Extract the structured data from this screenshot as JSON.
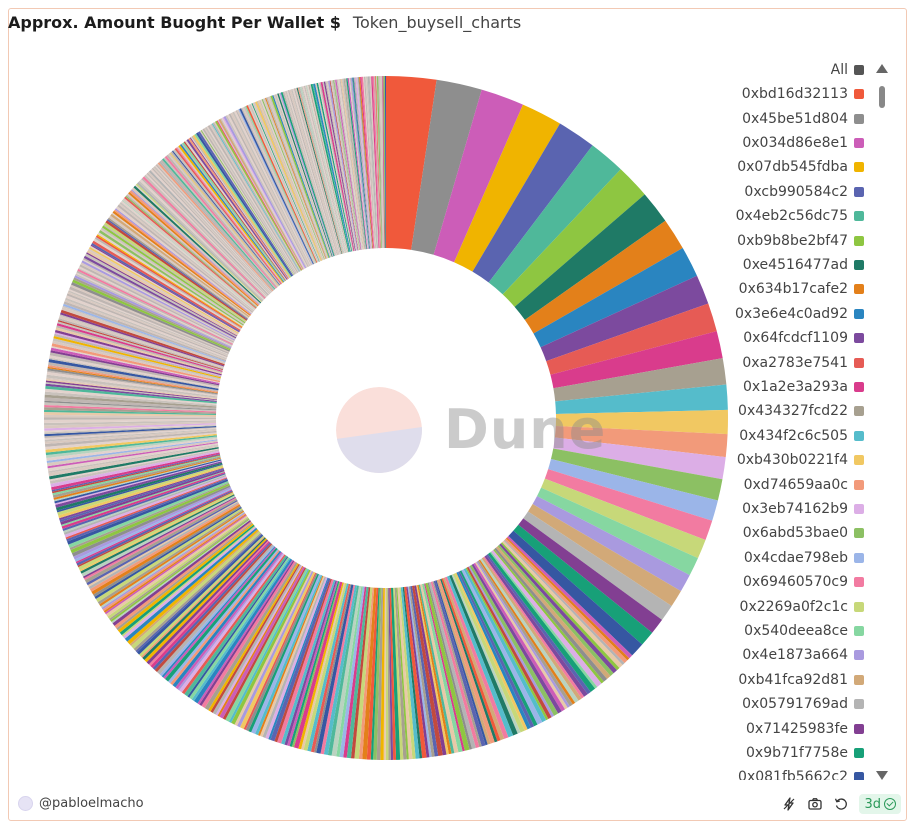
{
  "header": {
    "title": "Approx. Amount Buoght Per Wallet $",
    "query_name": "Token_buysell_charts"
  },
  "legend": {
    "all_label": "All",
    "all_color": "#555555"
  },
  "watermark": {
    "text": "Dune"
  },
  "footer": {
    "author": "@pabloelmacho",
    "refresh_badge": "3d",
    "icons": [
      "bolt-icon",
      "camera-icon",
      "refresh-icon",
      "check-circle-icon"
    ]
  },
  "chart_data": {
    "type": "pie",
    "variant": "donut",
    "legend_position": "right",
    "slices": [
      {
        "label": "0xbd16d32113",
        "color": "#f0593b",
        "value": 2.2
      },
      {
        "label": "0x45be51d804",
        "color": "#8e8e8e",
        "value": 2.0
      },
      {
        "label": "0x034d86e8e1",
        "color": "#cc5db8",
        "value": 1.9
      },
      {
        "label": "0x07db545fdba",
        "color": "#f0b400",
        "value": 1.8
      },
      {
        "label": "0xcb990584c2",
        "color": "#5a64b0",
        "value": 1.7
      },
      {
        "label": "0x4eb2c56dc75",
        "color": "#4fb89a",
        "value": 1.6
      },
      {
        "label": "0xb9b8be2bf47",
        "color": "#8ec641",
        "value": 1.5
      },
      {
        "label": "0xe4516477ad",
        "color": "#1f7a66",
        "value": 1.45
      },
      {
        "label": "0x634b17cafe2",
        "color": "#e3801a",
        "value": 1.4
      },
      {
        "label": "0x3e6e4c0ad92",
        "color": "#2a85c0",
        "value": 1.35
      },
      {
        "label": "0x64fcdcf1109",
        "color": "#7c4a9e",
        "value": 1.3
      },
      {
        "label": "0xa2783e7541",
        "color": "#e65b55",
        "value": 1.25
      },
      {
        "label": "0x1a2e3a293a",
        "color": "#d93c8c",
        "value": 1.2
      },
      {
        "label": "0x434327fcd22",
        "color": "#a7a090",
        "value": 1.15
      },
      {
        "label": "0x434f2c6c505",
        "color": "#55bccb",
        "value": 1.1
      },
      {
        "label": "0xb430b0221f4",
        "color": "#f1c862",
        "value": 1.05
      },
      {
        "label": "0xd74659aa0c",
        "color": "#f29a7a",
        "value": 1.0
      },
      {
        "label": "0x3eb74162b9",
        "color": "#dcaee6",
        "value": 0.97
      },
      {
        "label": "0x6abd53bae0",
        "color": "#8cc063",
        "value": 0.94
      },
      {
        "label": "0x4cdae798eb",
        "color": "#9bb5e8",
        "value": 0.91
      },
      {
        "label": "0x69460570c9",
        "color": "#f27ba1",
        "value": 0.88
      },
      {
        "label": "0x2269a0f2c1c",
        "color": "#c7d879",
        "value": 0.85
      },
      {
        "label": "0x540deea8ce",
        "color": "#86d7a1",
        "value": 0.82
      },
      {
        "label": "0x4e1873a664",
        "color": "#a99adf",
        "value": 0.79
      },
      {
        "label": "0xb41fca92d81",
        "color": "#d2a978",
        "value": 0.76
      },
      {
        "label": "0x05791769ad",
        "color": "#b4b4b4",
        "value": 0.73
      },
      {
        "label": "0x71425983fe",
        "color": "#823f92",
        "value": 0.7
      },
      {
        "label": "0x9b71f7758e",
        "color": "#17a078",
        "value": 0.67
      },
      {
        "label": "0x081fb5662c2",
        "color": "#3657a2",
        "value": 0.64
      }
    ],
    "other_slices_remainder": 58.4
  }
}
